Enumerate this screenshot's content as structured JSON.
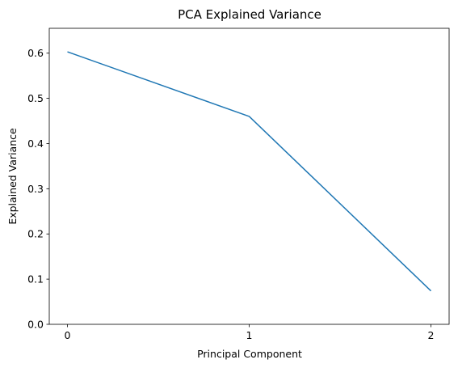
{
  "chart_data": {
    "type": "line",
    "title": "PCA Explained Variance",
    "xlabel": "Principal Component",
    "ylabel": "Explained Variance",
    "x": [
      0,
      1,
      2
    ],
    "x_tick_labels": [
      "0",
      "1",
      "2"
    ],
    "y_tick_labels": [
      "0.0",
      "0.1",
      "0.2",
      "0.3",
      "0.4",
      "0.5",
      "0.6"
    ],
    "y_ticks": [
      0.0,
      0.1,
      0.2,
      0.3,
      0.4,
      0.5,
      0.6
    ],
    "xlim": [
      -0.1,
      2.1
    ],
    "ylim": [
      0.0,
      0.655
    ],
    "grid": false,
    "series": [
      {
        "values": [
          0.603,
          0.46,
          0.074
        ],
        "color": "#1f77b4"
      }
    ]
  }
}
